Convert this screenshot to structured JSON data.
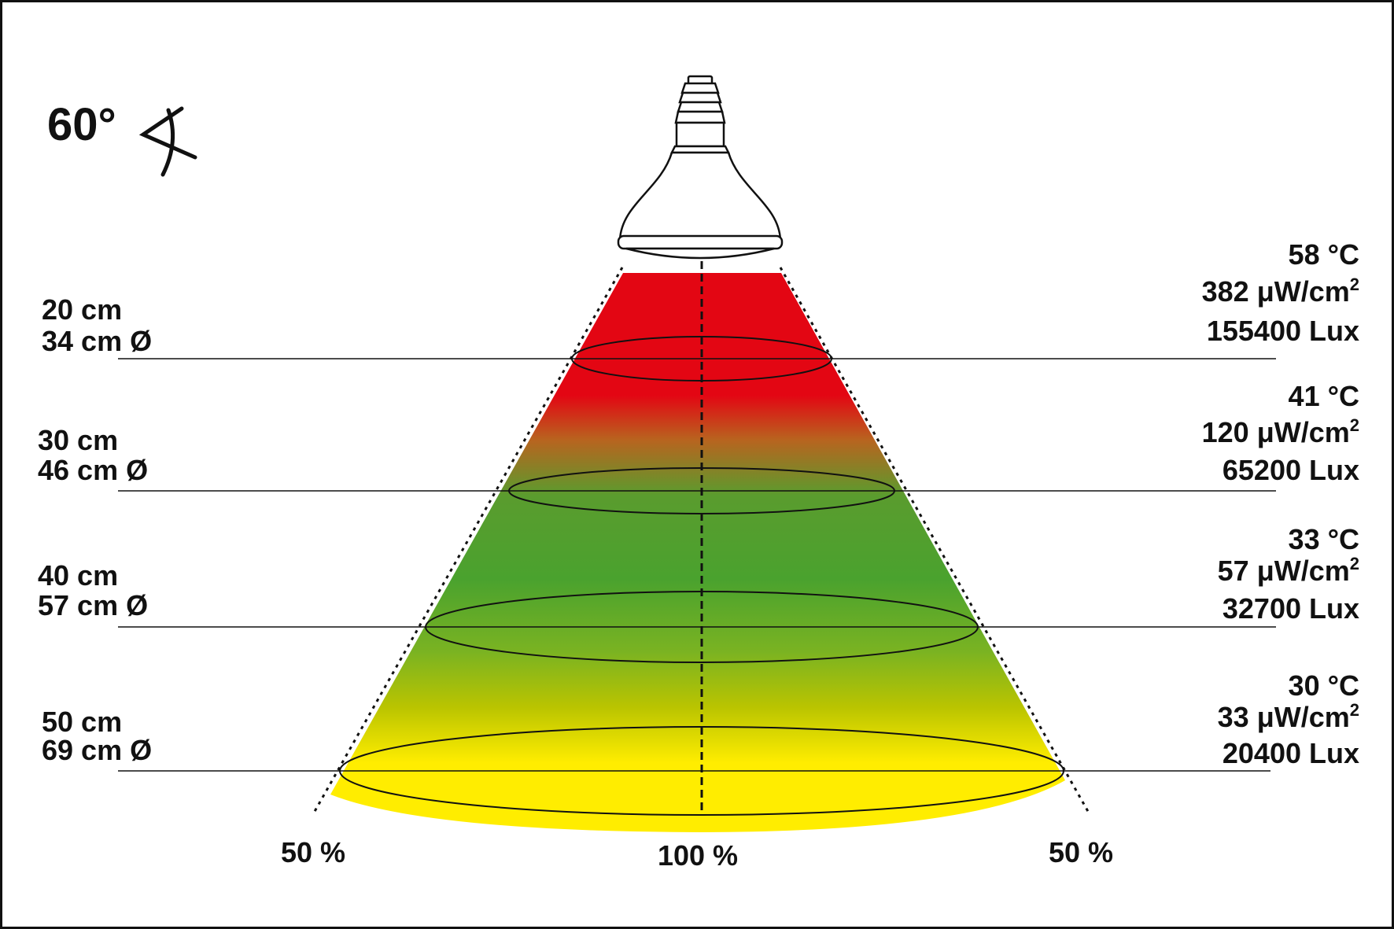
{
  "beam_angle": {
    "label": "60°",
    "icon": "angle-icon"
  },
  "colors": {
    "frame": "#111111",
    "beam_red": "#e30613",
    "beam_green": "#4aa22e",
    "beam_yellow": "#ffed00",
    "lines": "#111111",
    "bulb_fill": "#ffffff"
  },
  "distances": [
    {
      "distance": "20 cm",
      "diameter": "34 cm Ø",
      "temperature": "58 °C",
      "uv_value": "382 μW/cm",
      "uv_exponent": "2",
      "lux": "155400 Lux"
    },
    {
      "distance": "30 cm",
      "diameter": "46 cm Ø",
      "temperature": "41 °C",
      "uv_value": "120 μW/cm",
      "uv_exponent": "2",
      "lux": "65200 Lux"
    },
    {
      "distance": "40 cm",
      "diameter": "57 cm Ø",
      "temperature": "33 °C",
      "uv_value": "57 μW/cm",
      "uv_exponent": "2",
      "lux": "32700 Lux"
    },
    {
      "distance": "50 cm",
      "diameter": "69 cm Ø",
      "temperature": "30 °C",
      "uv_value": "33 μW/cm",
      "uv_exponent": "2",
      "lux": "20400 Lux"
    }
  ],
  "intensity_labels": {
    "left": "50 %",
    "center": "100 %",
    "right": "50 %"
  }
}
